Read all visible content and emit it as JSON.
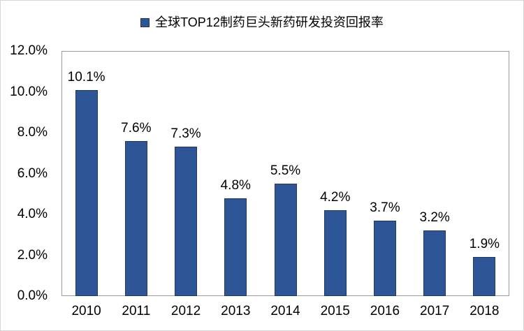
{
  "chart_data": {
    "type": "bar",
    "title": "全球TOP12制药巨头新药研发投资回报率",
    "legend": {
      "position": "top",
      "label": "全球TOP12制药巨头新药研发投资回报率"
    },
    "categories": [
      "2010",
      "2011",
      "2012",
      "2013",
      "2014",
      "2015",
      "2016",
      "2017",
      "2018"
    ],
    "values": [
      10.1,
      7.6,
      7.3,
      4.8,
      5.5,
      4.2,
      3.7,
      3.2,
      1.9
    ],
    "data_labels": [
      "10.1%",
      "7.6%",
      "7.3%",
      "4.8%",
      "5.5%",
      "4.2%",
      "3.7%",
      "3.2%",
      "1.9%"
    ],
    "unit": "%",
    "xlabel": "",
    "ylabel": "",
    "ylim": [
      0,
      12
    ],
    "yticks": [
      0,
      2,
      4,
      6,
      8,
      10,
      12
    ],
    "ytick_labels": [
      "0.0%",
      "2.0%",
      "4.0%",
      "6.0%",
      "8.0%",
      "10.0%",
      "12.0%"
    ],
    "grid": false,
    "colors": {
      "bar_fill": "#2E5596",
      "bar_border": "#1F3864",
      "plot_border": "#9B9B9B",
      "chart_border": "#D6D6D6",
      "text": "#000000"
    }
  }
}
